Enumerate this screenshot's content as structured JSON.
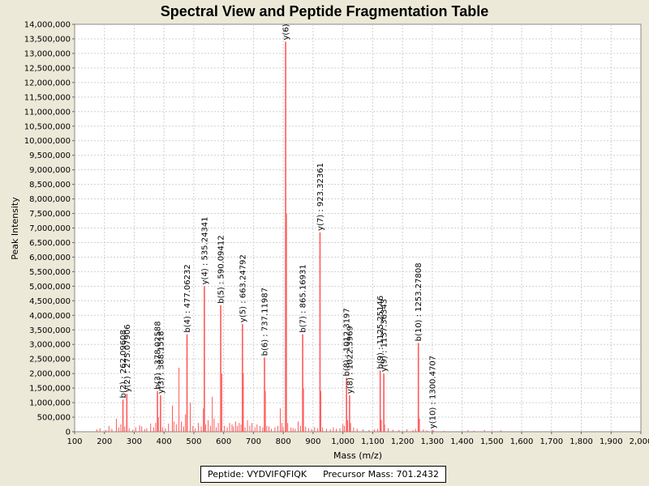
{
  "chart_data": {
    "type": "bar",
    "title": "Spectral View and Peptide Fragmentation Table",
    "xlabel": "Mass (m/z)",
    "ylabel": "Peak Intensity",
    "xlim": [
      100,
      2000
    ],
    "ylim": [
      0,
      14000000
    ],
    "xticks": [
      100,
      200,
      300,
      400,
      500,
      600,
      700,
      800,
      900,
      1000,
      1100,
      1200,
      1300,
      1400,
      1500,
      1600,
      1700,
      1800,
      1900,
      2000
    ],
    "xtick_labels": [
      "100",
      "200",
      "300",
      "400",
      "500",
      "600",
      "700",
      "800",
      "900",
      "1,000",
      "1,100",
      "1,200",
      "1,300",
      "1,400",
      "1,500",
      "1,600",
      "1,700",
      "1,800",
      "1,900",
      "2,000"
    ],
    "yticks": [
      0,
      500000,
      1000000,
      1500000,
      2000000,
      2500000,
      3000000,
      3500000,
      4000000,
      4500000,
      5000000,
      5500000,
      6000000,
      6500000,
      7000000,
      7500000,
      8000000,
      8500000,
      9000000,
      9500000,
      10000000,
      10500000,
      11000000,
      11500000,
      12000000,
      12500000,
      13000000,
      13500000,
      14000000
    ],
    "ytick_labels": [
      "0",
      "500,000",
      "1,000,000",
      "1,500,000",
      "2,000,000",
      "2,500,000",
      "3,000,000",
      "3,500,000",
      "4,000,000",
      "4,500,000",
      "5,000,000",
      "5,500,000",
      "6,000,000",
      "6,500,000",
      "7,000,000",
      "7,500,000",
      "8,000,000",
      "8,500,000",
      "9,000,000",
      "9,500,000",
      "10,000,000",
      "10,500,000",
      "11,000,000",
      "11,500,000",
      "12,000,000",
      "12,500,000",
      "13,000,000",
      "13,500,000",
      "14,000,000"
    ],
    "bar_color": "#ff5a5a",
    "grid": true,
    "annotated_peaks": [
      {
        "mz": 262.1,
        "intensity": 1100000,
        "label": "b(2) : 262.09608"
      },
      {
        "mz": 275.1,
        "intensity": 1300000,
        "label": "y(2) : 275.07906"
      },
      {
        "mz": 378.0,
        "intensity": 1400000,
        "label": "b(3) : 378.02588"
      },
      {
        "mz": 388.2,
        "intensity": 1250000,
        "label": "y(3) : 388.1518"
      },
      {
        "mz": 477.1,
        "intensity": 3350000,
        "label": "b(4) : 477.06232"
      },
      {
        "mz": 535.2,
        "intensity": 5000000,
        "label": "y(4) : 535.24341"
      },
      {
        "mz": 590.1,
        "intensity": 4350000,
        "label": "b(5) : 590.09412"
      },
      {
        "mz": 663.2,
        "intensity": 3700000,
        "label": "y(5) : 663.24792"
      },
      {
        "mz": 737.1,
        "intensity": 2550000,
        "label": "b(6) : 737.11987"
      },
      {
        "mz": 808.0,
        "intensity": 13400000,
        "label": "y(6)"
      },
      {
        "mz": 865.2,
        "intensity": 3350000,
        "label": "b(7) : 865.16931"
      },
      {
        "mz": 923.3,
        "intensity": 6850000,
        "label": "y(7) : 923.32361"
      },
      {
        "mz": 1012.3,
        "intensity": 1850000,
        "label": "b(8) : 1012.3197"
      },
      {
        "mz": 1022.4,
        "intensity": 1250000,
        "label": "y(8) : 1022.3969"
      },
      {
        "mz": 1125.3,
        "intensity": 2100000,
        "label": "b(9) : 1125.25146"
      },
      {
        "mz": 1137.4,
        "intensity": 2000000,
        "label": "y(9) : 1137.36343"
      },
      {
        "mz": 1253.3,
        "intensity": 3050000,
        "label": "b(10) : 1253.27808"
      },
      {
        "mz": 1300.5,
        "intensity": 50000,
        "label": "y(10) : 1300.4707"
      }
    ],
    "other_peaks": [
      [
        175,
        80000
      ],
      [
        185,
        120000
      ],
      [
        205,
        60000
      ],
      [
        215,
        200000
      ],
      [
        225,
        100000
      ],
      [
        240,
        450000
      ],
      [
        248,
        150000
      ],
      [
        255,
        250000
      ],
      [
        268,
        180000
      ],
      [
        283,
        120000
      ],
      [
        295,
        70000
      ],
      [
        305,
        150000
      ],
      [
        318,
        220000
      ],
      [
        325,
        180000
      ],
      [
        335,
        90000
      ],
      [
        342,
        120000
      ],
      [
        355,
        280000
      ],
      [
        365,
        150000
      ],
      [
        372,
        300000
      ],
      [
        381,
        500000
      ],
      [
        395,
        150000
      ],
      [
        405,
        120000
      ],
      [
        415,
        280000
      ],
      [
        428,
        900000
      ],
      [
        433,
        350000
      ],
      [
        441,
        250000
      ],
      [
        450,
        2200000
      ],
      [
        458,
        350000
      ],
      [
        466,
        180000
      ],
      [
        472,
        600000
      ],
      [
        488,
        1000000
      ],
      [
        497,
        200000
      ],
      [
        505,
        120000
      ],
      [
        515,
        300000
      ],
      [
        525,
        180000
      ],
      [
        532,
        800000
      ],
      [
        540,
        250000
      ],
      [
        548,
        400000
      ],
      [
        556,
        200000
      ],
      [
        562,
        1200000
      ],
      [
        568,
        450000
      ],
      [
        575,
        150000
      ],
      [
        582,
        300000
      ],
      [
        594,
        2000000
      ],
      [
        603,
        200000
      ],
      [
        612,
        150000
      ],
      [
        620,
        300000
      ],
      [
        628,
        250000
      ],
      [
        633,
        180000
      ],
      [
        640,
        350000
      ],
      [
        646,
        200000
      ],
      [
        652,
        300000
      ],
      [
        658,
        250000
      ],
      [
        666,
        2000000
      ],
      [
        672,
        150000
      ],
      [
        680,
        400000
      ],
      [
        688,
        200000
      ],
      [
        695,
        300000
      ],
      [
        705,
        150000
      ],
      [
        712,
        250000
      ],
      [
        722,
        200000
      ],
      [
        731,
        150000
      ],
      [
        740,
        1400000
      ],
      [
        745,
        200000
      ],
      [
        752,
        180000
      ],
      [
        760,
        100000
      ],
      [
        772,
        150000
      ],
      [
        782,
        200000
      ],
      [
        790,
        800000
      ],
      [
        795,
        300000
      ],
      [
        800,
        150000
      ],
      [
        811,
        7500000
      ],
      [
        815,
        300000
      ],
      [
        826,
        150000
      ],
      [
        833,
        120000
      ],
      [
        840,
        100000
      ],
      [
        850,
        350000
      ],
      [
        858,
        200000
      ],
      [
        868,
        1500000
      ],
      [
        875,
        180000
      ],
      [
        885,
        120000
      ],
      [
        895,
        100000
      ],
      [
        905,
        150000
      ],
      [
        915,
        120000
      ],
      [
        926,
        1400000
      ],
      [
        932,
        150000
      ],
      [
        945,
        100000
      ],
      [
        958,
        80000
      ],
      [
        968,
        150000
      ],
      [
        978,
        100000
      ],
      [
        990,
        120000
      ],
      [
        1000,
        250000
      ],
      [
        1005,
        200000
      ],
      [
        1016,
        400000
      ],
      [
        1026,
        300000
      ],
      [
        1036,
        150000
      ],
      [
        1048,
        100000
      ],
      [
        1068,
        80000
      ],
      [
        1088,
        60000
      ],
      [
        1106,
        80000
      ],
      [
        1117,
        100000
      ],
      [
        1129,
        400000
      ],
      [
        1140,
        250000
      ],
      [
        1152,
        120000
      ],
      [
        1168,
        70000
      ],
      [
        1188,
        60000
      ],
      [
        1215,
        80000
      ],
      [
        1235,
        60000
      ],
      [
        1244,
        100000
      ],
      [
        1257,
        450000
      ],
      [
        1270,
        80000
      ],
      [
        1282,
        50000
      ],
      [
        1305,
        40000
      ],
      [
        1340,
        30000
      ],
      [
        1420,
        60000
      ],
      [
        1440,
        40000
      ],
      [
        1475,
        60000
      ],
      [
        1530,
        50000
      ]
    ]
  },
  "legend": {
    "peptide": "Peptide: VYDVIFQFIQK",
    "precursor": "Precursor Mass: 701.2432"
  }
}
